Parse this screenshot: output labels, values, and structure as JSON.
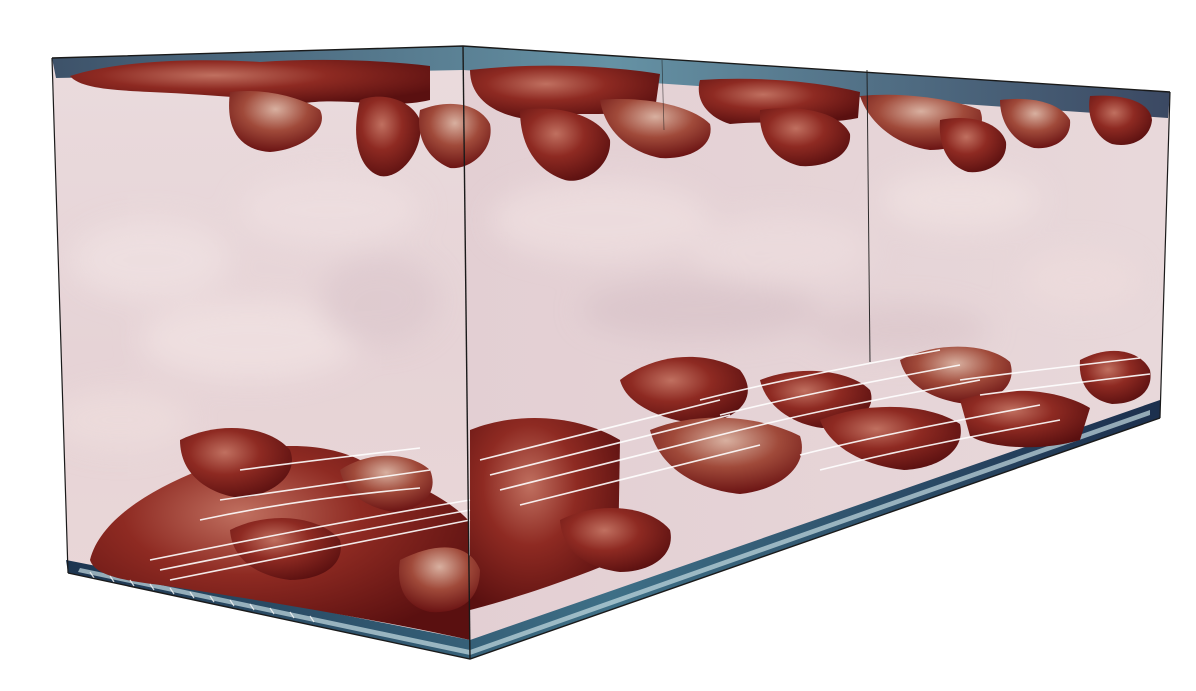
{
  "scene": {
    "subject": "3d-turbulent-channel-flow-render",
    "colors": {
      "background": "#ffffff",
      "box_wall": "#e9d9da",
      "box_wall_shade": "#d8c4c9",
      "structure_dark": "#6b1414",
      "structure_mid": "#8e2a22",
      "structure_light": "#b85a48",
      "highlight": "#d7b7a6",
      "cool_blue": "#5f8fa3",
      "deep_blue": "#1c2f4d",
      "streak": "#ffffff",
      "edge": "#1a1a1a"
    }
  }
}
